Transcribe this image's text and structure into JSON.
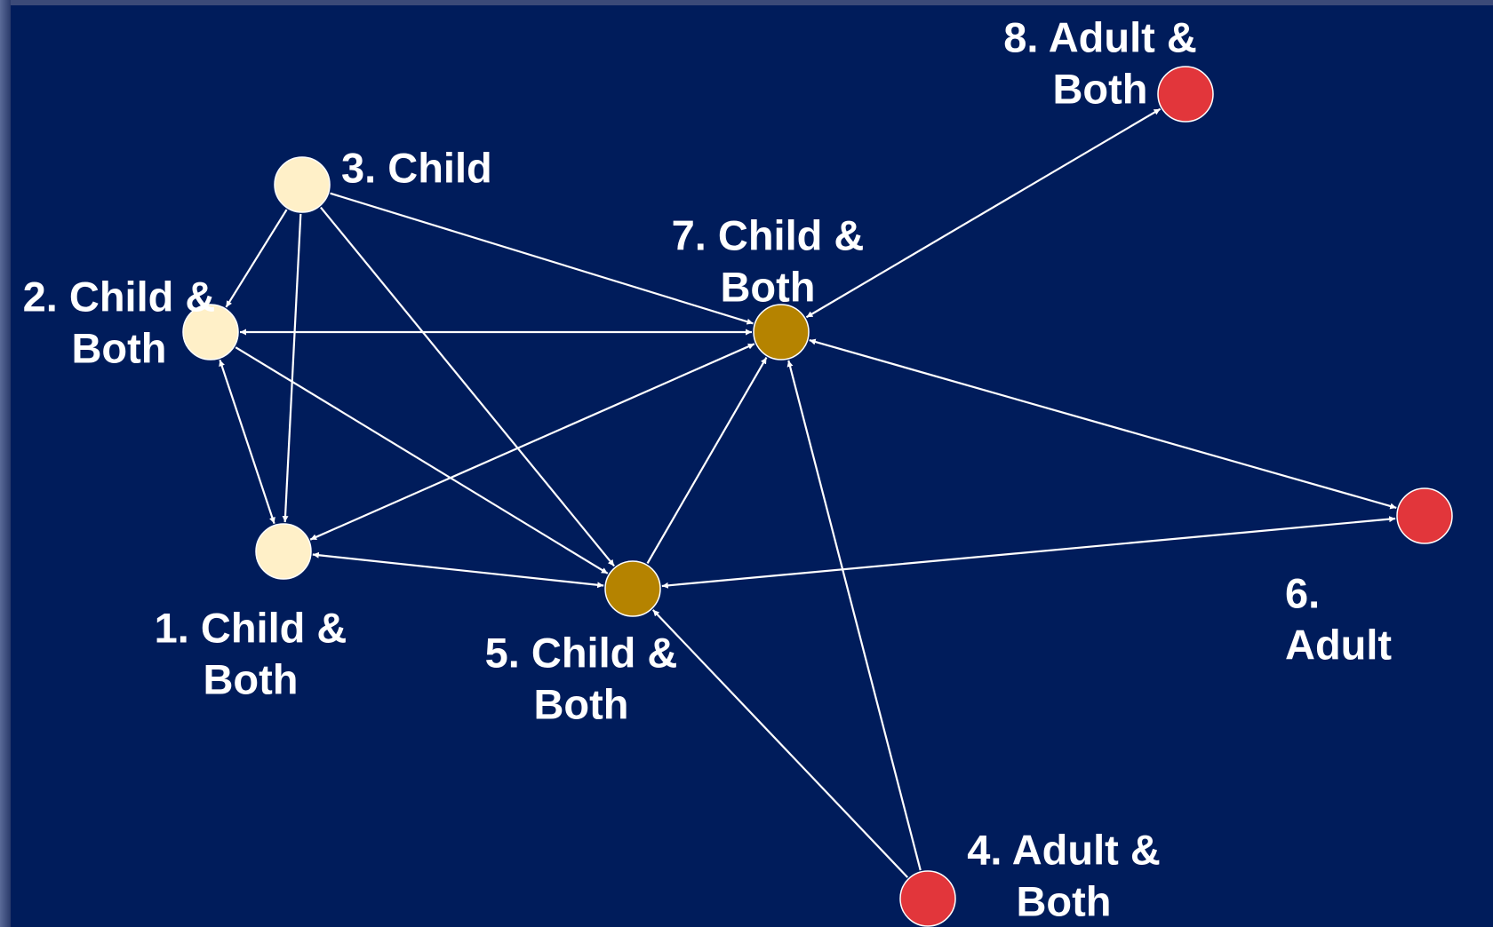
{
  "nodes": [
    {
      "lines": [
        "1. Child &",
        "Both"
      ]
    },
    {
      "lines": [
        "2. Child &",
        "Both"
      ]
    },
    {
      "lines": [
        "3. Child"
      ]
    },
    {
      "lines": [
        "4. Adult &",
        "Both"
      ]
    },
    {
      "lines": [
        "5. Child &",
        "Both"
      ]
    },
    {
      "lines": [
        "6.",
        "Adult"
      ]
    },
    {
      "lines": [
        "7. Child &",
        "Both"
      ]
    },
    {
      "lines": [
        "8. Adult &",
        "Both"
      ]
    }
  ]
}
